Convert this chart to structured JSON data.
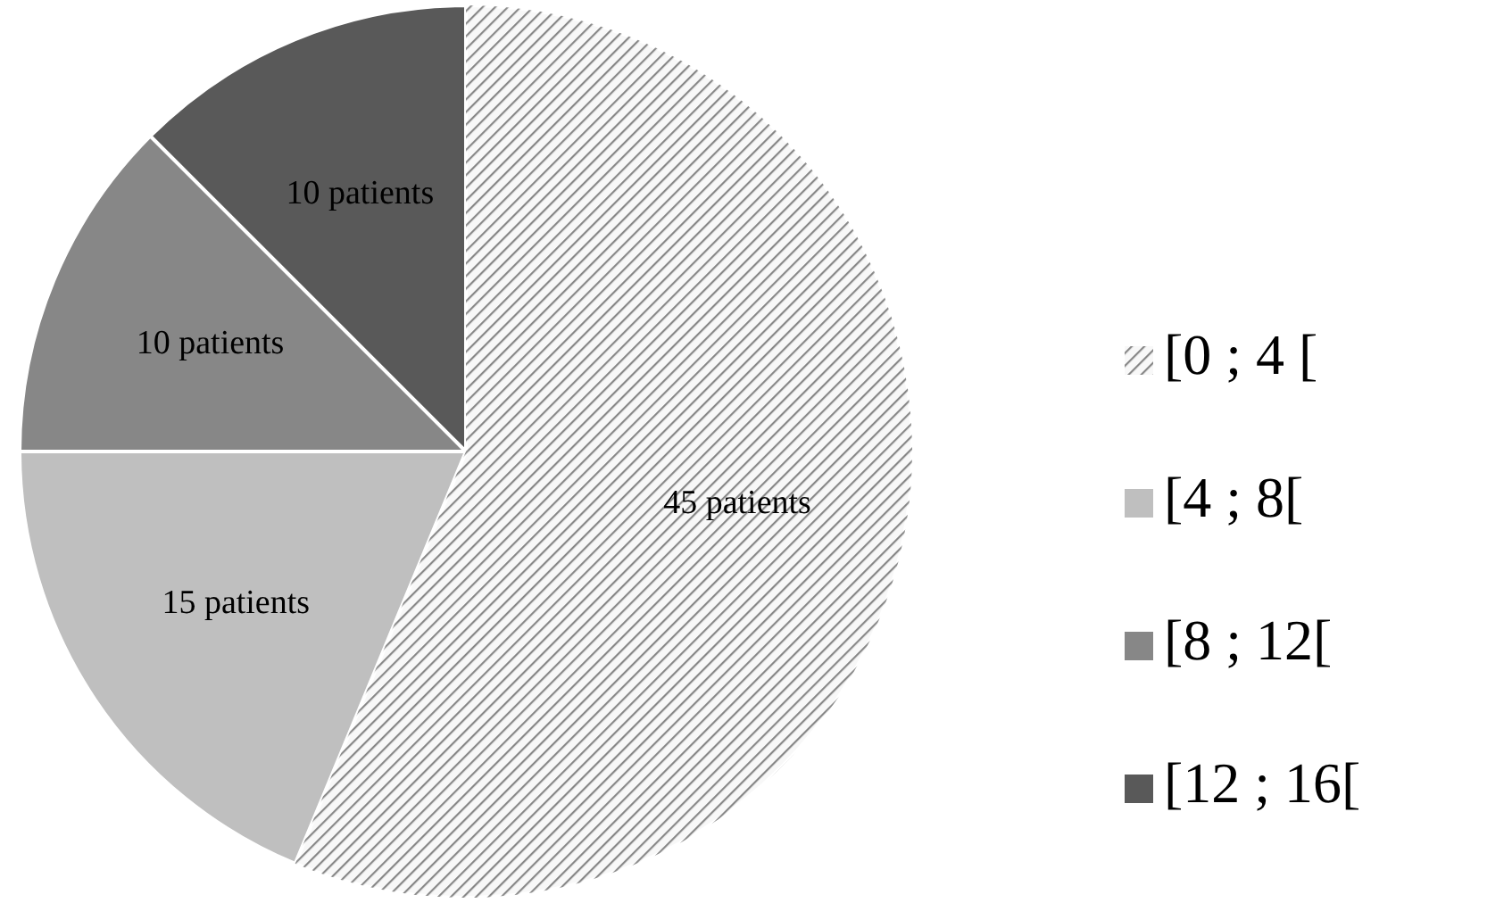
{
  "chart_data": {
    "type": "pie",
    "categories": [
      "[0 ; 4 [",
      "[4 ; 8[",
      "[8 ; 12[",
      "[12 ; 16["
    ],
    "values": [
      45,
      15,
      10,
      10
    ],
    "colors": [
      "#d0d0d0",
      "#bfbfbf",
      "#878787",
      "#595959"
    ],
    "value_labels": [
      "45 patients",
      "15 patients",
      "10 patients",
      "10 patients"
    ],
    "legend": "right"
  }
}
